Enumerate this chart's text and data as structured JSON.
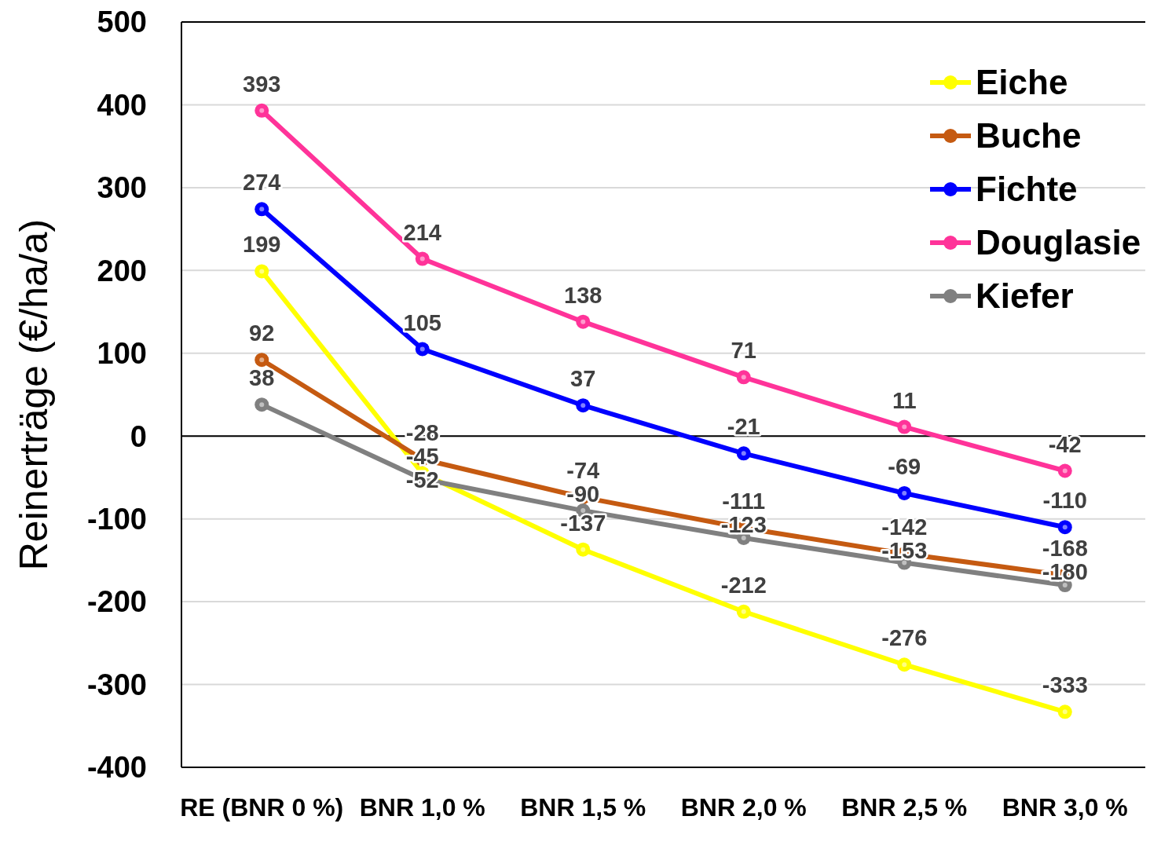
{
  "chart_data": {
    "type": "line",
    "ylabel": "Reinerträge (€/ha/a)",
    "categories": [
      "RE (BNR 0 %)",
      "BNR 1,0 %",
      "BNR 1,5 %",
      "BNR 2,0 %",
      "BNR 2,5 %",
      "BNR 3,0 %"
    ],
    "series": [
      {
        "name": "Eiche",
        "color": "#ffff00",
        "values": [
          199,
          -45,
          -137,
          -212,
          -276,
          -333
        ]
      },
      {
        "name": "Buche",
        "color": "#c55a11",
        "values": [
          92,
          -28,
          -74,
          -111,
          -142,
          -168
        ]
      },
      {
        "name": "Fichte",
        "color": "#0000ff",
        "values": [
          274,
          105,
          37,
          -21,
          -69,
          -110
        ]
      },
      {
        "name": "Douglasie",
        "color": "#ff3399",
        "values": [
          393,
          214,
          138,
          71,
          11,
          -42
        ]
      },
      {
        "name": "Kiefer",
        "color": "#808080",
        "values": [
          38,
          -52,
          -90,
          -123,
          -153,
          -180
        ]
      }
    ],
    "ylim": [
      -400,
      500
    ],
    "yticks": [
      -400,
      -300,
      -200,
      -100,
      0,
      100,
      200,
      300,
      400,
      500
    ],
    "grid": "y",
    "legend": "top right",
    "marker": "circle",
    "line_style": "solid",
    "data_labels": true
  }
}
